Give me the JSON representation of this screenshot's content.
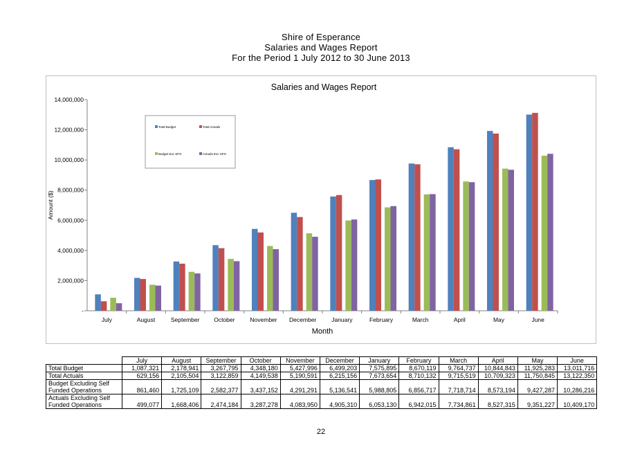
{
  "header": {
    "line1": "Shire of Esperance",
    "line2": "Salaries and Wages Report",
    "line3": "For the Period  1 July 2012 to 30 June 2013"
  },
  "chart_data": {
    "type": "bar",
    "title": "Salaries and Wages Report",
    "xlabel": "Month",
    "ylabel": "Amount ($)",
    "ylim": [
      0,
      14000000
    ],
    "y_ticks": [
      0,
      2000000,
      4000000,
      6000000,
      8000000,
      10000000,
      12000000,
      14000000
    ],
    "y_tick_labels": [
      "-",
      "2,000,000",
      "4,000,000",
      "6,000,000",
      "8,000,000",
      "10,000,000",
      "12,000,000",
      "14,000,000"
    ],
    "grid": false,
    "legend_position": "top-left",
    "categories": [
      "July",
      "August",
      "September",
      "October",
      "November",
      "December",
      "January",
      "February",
      "March",
      "April",
      "May",
      "June"
    ],
    "series": [
      {
        "name": "Total Budget",
        "color": "#4f81bd",
        "values": [
          1087321,
          2178941,
          3267795,
          4348180,
          5427996,
          6499203,
          7575895,
          8670119,
          9764737,
          10844843,
          11925283,
          13011716
        ]
      },
      {
        "name": "Total Actuals",
        "color": "#c0504d",
        "values": [
          629156,
          2105504,
          3122859,
          4149538,
          5190591,
          6215156,
          7673654,
          8710132,
          9715519,
          10709323,
          11750845,
          13122350
        ]
      },
      {
        "name": "Budget Exc SFO",
        "color": "#9bbb59",
        "values": [
          861460,
          1725109,
          2582377,
          3437152,
          4291291,
          5136541,
          5988805,
          6856717,
          7718714,
          8573194,
          9427287,
          10286216
        ]
      },
      {
        "name": "Actuals Exc SFO",
        "color": "#8064a2",
        "values": [
          499077,
          1668406,
          2474184,
          3287278,
          4083950,
          4905310,
          6053130,
          6942015,
          7734861,
          8527315,
          9351227,
          10409170
        ]
      }
    ]
  },
  "table": {
    "columns": [
      "July",
      "August",
      "September",
      "October",
      "November",
      "December",
      "January",
      "February",
      "March",
      "April",
      "May",
      "June"
    ],
    "rows": [
      {
        "label1": "Total Budget",
        "label2": "",
        "values": [
          "1,087,321",
          "2,178,941",
          "3,267,795",
          "4,348,180",
          "5,427,996",
          "6,499,203",
          "7,575,895",
          "8,670,119",
          "9,764,737",
          "10,844,843",
          "11,925,283",
          "13,011,716"
        ]
      },
      {
        "label1": "Total Actuals",
        "label2": "",
        "values": [
          "629,156",
          "2,105,504",
          "3,122,859",
          "4,149,538",
          "5,190,591",
          "6,215,156",
          "7,673,654",
          "8,710,132",
          "9,715,519",
          "10,709,323",
          "11,750,845",
          "13,122,350"
        ]
      },
      {
        "label1": "Budget Excluding Self",
        "label2": "Funded Operations",
        "values": [
          "861,460",
          "1,725,109",
          "2,582,377",
          "3,437,152",
          "4,291,291",
          "5,136,541",
          "5,988,805",
          "6,856,717",
          "7,718,714",
          "8,573,194",
          "9,427,287",
          "10,286,216"
        ]
      },
      {
        "label1": "Actuals Excluding Self",
        "label2": "Funded Operations",
        "values": [
          "499,077",
          "1,668,406",
          "2,474,184",
          "3,287,278",
          "4,083,950",
          "4,905,310",
          "6,053,130",
          "6,942,015",
          "7,734,861",
          "8,527,315",
          "9,351,227",
          "10,409,170"
        ]
      }
    ]
  },
  "footer": {
    "page_number": "22"
  }
}
